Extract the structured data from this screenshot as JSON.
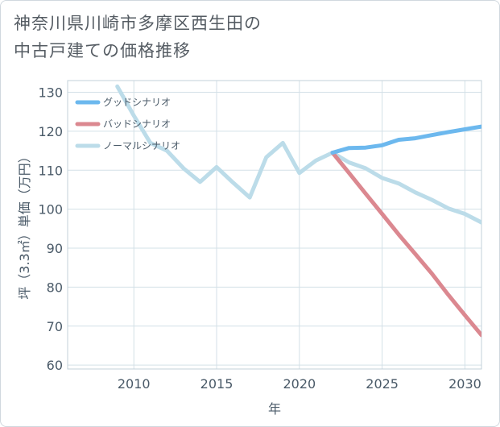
{
  "title": {
    "line1": "神奈川県川崎市多摩区西生田の",
    "line2": "中古戸建ての価格推移"
  },
  "chart_data": {
    "type": "line",
    "title": "神奈川県川崎市多摩区西生田の中古戸建ての価格推移",
    "xlabel": "年",
    "ylabel": "坪（3.3㎡）単価（万円）",
    "xlim": [
      2006,
      2031
    ],
    "ylim": [
      59,
      133
    ],
    "x_ticks": [
      2010,
      2015,
      2020,
      2025,
      2030
    ],
    "y_ticks": [
      60,
      70,
      80,
      90,
      100,
      110,
      120,
      130
    ],
    "grid": true,
    "legend_position": "top-left",
    "series": [
      {
        "name": "グッドシナリオ",
        "color": "#6cb8ee",
        "x": [
          2022,
          2023,
          2024,
          2025,
          2026,
          2027,
          2028,
          2029,
          2030,
          2031
        ],
        "values": [
          114.5,
          115.7,
          115.8,
          116.4,
          117.8,
          118.2,
          119.0,
          119.8,
          120.5,
          121.2
        ]
      },
      {
        "name": "バッドシナリオ",
        "color": "#db8890",
        "x": [
          2022,
          2023,
          2024,
          2025,
          2026,
          2027,
          2028,
          2029,
          2030,
          2031
        ],
        "values": [
          114.5,
          109.3,
          104.0,
          98.8,
          93.5,
          88.5,
          83.5,
          78.0,
          72.8,
          67.7
        ]
      },
      {
        "name": "ノーマルシナリオ",
        "color": "#bcdce9",
        "x": [
          2009,
          2010,
          2011,
          2012,
          2013,
          2014,
          2015,
          2016,
          2017,
          2018,
          2019,
          2020,
          2021,
          2022,
          2023,
          2024,
          2025,
          2026,
          2027,
          2028,
          2029,
          2030,
          2031
        ],
        "values": [
          131.5,
          124.0,
          117.0,
          115.0,
          110.5,
          107.0,
          110.8,
          106.8,
          103.0,
          113.3,
          117.0,
          109.3,
          112.5,
          114.5,
          112.0,
          110.5,
          108.0,
          106.6,
          104.3,
          102.4,
          100.2,
          98.8,
          96.6
        ]
      }
    ]
  }
}
